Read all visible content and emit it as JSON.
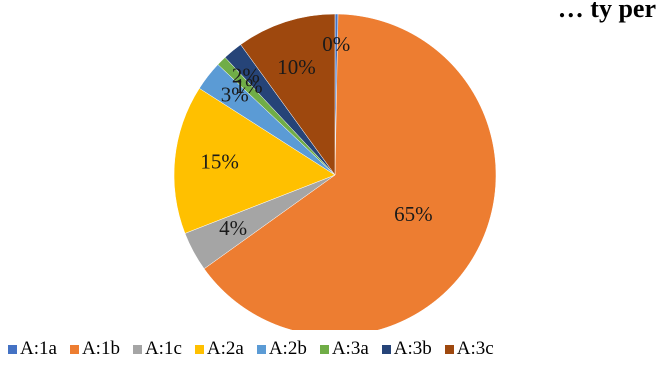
{
  "chart_data": {
    "type": "pie",
    "title": "… ty       per",
    "categories": [
      "A:1a",
      "A:1b",
      "A:1c",
      "A:2a",
      "A:2b",
      "A:3a",
      "A:3b",
      "A:3c"
    ],
    "values": [
      0.3,
      65,
      4,
      15,
      3,
      1,
      2,
      10
    ],
    "labels": [
      "0%",
      "65%",
      "4%",
      "15%",
      "3%",
      "1%",
      "2%",
      "10%"
    ],
    "colors": [
      "#4472C4",
      "#ED7D31",
      "#A5A5A5",
      "#FFC000",
      "#5B9BD5",
      "#70AD47",
      "#264478",
      "#9E480E"
    ],
    "legend_position": "bottom"
  }
}
